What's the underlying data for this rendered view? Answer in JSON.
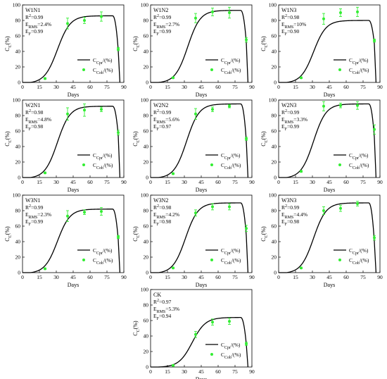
{
  "axes": {
    "xlabel": "Days",
    "ylabel": "C_C(%)",
    "xticks": [
      0,
      15,
      30,
      45,
      60,
      75,
      90
    ],
    "yticks": [
      0,
      20,
      40,
      60,
      80,
      100
    ],
    "xlim": [
      0,
      90
    ],
    "ylim": [
      0,
      100
    ]
  },
  "legend": {
    "pred_label": "C_Cpr/(%)",
    "obs_label": "C_Cob/(%)",
    "position": "bottom-right"
  },
  "colors": {
    "curve": "#000000",
    "observed": "#33ee33"
  },
  "chart_data": [
    {
      "type": "line",
      "panel_label": "W1N1",
      "stats": [
        "R2=0.99",
        "ERMS=2.4%",
        "EF=0.99"
      ],
      "curve": {
        "start": 7,
        "k": 0.175,
        "tmid": 31,
        "max": 86,
        "plateau_end": 80,
        "end": 86.5,
        "tail": 42
      },
      "observed": [
        {
          "x": 20,
          "y": 5,
          "err": 1
        },
        {
          "x": 40,
          "y": 76,
          "err": 7
        },
        {
          "x": 55,
          "y": 80,
          "err": 4
        },
        {
          "x": 70,
          "y": 85,
          "err": 6
        },
        {
          "x": 85,
          "y": 43,
          "err": 2
        }
      ],
      "xlim": [
        0,
        90
      ],
      "ylim": [
        0,
        100
      ]
    },
    {
      "type": "line",
      "panel_label": "W1N2",
      "stats": [
        "R2=0.99",
        "ERMS=2.7%",
        "EF=0.99"
      ],
      "curve": {
        "start": 7,
        "k": 0.18,
        "tmid": 33,
        "max": 93,
        "plateau_end": 80,
        "end": 86.5,
        "tail": 52
      },
      "observed": [
        {
          "x": 20,
          "y": 6,
          "err": 1
        },
        {
          "x": 40,
          "y": 83,
          "err": 6
        },
        {
          "x": 55,
          "y": 91,
          "err": 5
        },
        {
          "x": 70,
          "y": 90,
          "err": 7
        },
        {
          "x": 85,
          "y": 55,
          "err": 3
        }
      ],
      "xlim": [
        0,
        90
      ],
      "ylim": [
        0,
        100
      ]
    },
    {
      "type": "line",
      "panel_label": "W1N3",
      "stats": [
        "R2=0.98",
        "ERMS=10%",
        "EF=0.90"
      ],
      "curve": {
        "start": 7,
        "k": 0.18,
        "tmid": 31,
        "max": 80,
        "plateau_end": 80,
        "end": 86.5,
        "tail": 50
      },
      "observed": [
        {
          "x": 20,
          "y": 6,
          "err": 1
        },
        {
          "x": 40,
          "y": 82,
          "err": 7
        },
        {
          "x": 55,
          "y": 90,
          "err": 5
        },
        {
          "x": 70,
          "y": 91,
          "err": 6
        },
        {
          "x": 85,
          "y": 54,
          "err": 2
        }
      ],
      "xlim": [
        0,
        90
      ],
      "ylim": [
        0,
        100
      ]
    },
    {
      "type": "line",
      "panel_label": "W2N1",
      "stats": [
        "R2=0.98",
        "ERMS=4.8%",
        "EF=0.98"
      ],
      "curve": {
        "start": 7,
        "k": 0.18,
        "tmid": 31,
        "max": 92,
        "plateau_end": 80,
        "end": 86.5,
        "tail": 55
      },
      "observed": [
        {
          "x": 20,
          "y": 6,
          "err": 1
        },
        {
          "x": 40,
          "y": 82,
          "err": 8
        },
        {
          "x": 55,
          "y": 87,
          "err": 8
        },
        {
          "x": 70,
          "y": 88,
          "err": 3
        },
        {
          "x": 85,
          "y": 58,
          "err": 3
        }
      ],
      "xlim": [
        0,
        90
      ],
      "ylim": [
        0,
        100
      ]
    },
    {
      "type": "line",
      "panel_label": "W2N2",
      "stats": [
        "R2=0.99",
        "ERMS=5.6%",
        "EF=0.97"
      ],
      "curve": {
        "start": 7,
        "k": 0.18,
        "tmid": 32,
        "max": 95,
        "plateau_end": 80,
        "end": 86.5,
        "tail": 48
      },
      "observed": [
        {
          "x": 20,
          "y": 5,
          "err": 1
        },
        {
          "x": 40,
          "y": 82,
          "err": 7
        },
        {
          "x": 55,
          "y": 88,
          "err": 3
        },
        {
          "x": 70,
          "y": 92,
          "err": 2
        },
        {
          "x": 85,
          "y": 50,
          "err": 2
        }
      ],
      "xlim": [
        0,
        90
      ],
      "ylim": [
        0,
        100
      ]
    },
    {
      "type": "line",
      "panel_label": "W2N3",
      "stats": [
        "R2=0.99",
        "ERMS=3.3%",
        "EF=0.99"
      ],
      "curve": {
        "start": 7,
        "k": 0.18,
        "tmid": 31,
        "max": 95,
        "plateau_end": 80,
        "end": 86.5,
        "tail": 52
      },
      "observed": [
        {
          "x": 20,
          "y": 8,
          "err": 1
        },
        {
          "x": 40,
          "y": 92,
          "err": 6
        },
        {
          "x": 55,
          "y": 93,
          "err": 3
        },
        {
          "x": 70,
          "y": 93,
          "err": 5
        },
        {
          "x": 85,
          "y": 62,
          "err": 6
        }
      ],
      "xlim": [
        0,
        90
      ],
      "ylim": [
        0,
        100
      ]
    },
    {
      "type": "line",
      "panel_label": "W3N1",
      "stats": [
        "R2=0.99",
        "ERMS=2.3%",
        "EF=0.99"
      ],
      "curve": {
        "start": 7,
        "k": 0.18,
        "tmid": 31,
        "max": 82,
        "plateau_end": 80,
        "end": 86.5,
        "tail": 43
      },
      "observed": [
        {
          "x": 20,
          "y": 5,
          "err": 1
        },
        {
          "x": 40,
          "y": 73,
          "err": 7
        },
        {
          "x": 55,
          "y": 78,
          "err": 3
        },
        {
          "x": 70,
          "y": 79,
          "err": 5
        },
        {
          "x": 85,
          "y": 46,
          "err": 2
        }
      ],
      "xlim": [
        0,
        90
      ],
      "ylim": [
        0,
        100
      ]
    },
    {
      "type": "line",
      "panel_label": "W3N2",
      "stats": [
        "R2=0.98",
        "ERMS=4.2%",
        "EF=0.98"
      ],
      "curve": {
        "start": 7,
        "k": 0.18,
        "tmid": 31,
        "max": 90,
        "plateau_end": 80,
        "end": 86.5,
        "tail": 48
      },
      "observed": [
        {
          "x": 20,
          "y": 6,
          "err": 1
        },
        {
          "x": 40,
          "y": 77,
          "err": 4
        },
        {
          "x": 55,
          "y": 85,
          "err": 4
        },
        {
          "x": 70,
          "y": 85,
          "err": 4
        },
        {
          "x": 85,
          "y": 57,
          "err": 4
        }
      ],
      "xlim": [
        0,
        90
      ],
      "ylim": [
        0,
        100
      ]
    },
    {
      "type": "line",
      "panel_label": "W3N3",
      "stats": [
        "R2=0.99",
        "ERMS=4.4%",
        "EF=0.98"
      ],
      "curve": {
        "start": 7,
        "k": 0.18,
        "tmid": 31,
        "max": 90,
        "plateau_end": 80,
        "end": 86.5,
        "tail": 40
      },
      "observed": [
        {
          "x": 20,
          "y": 6,
          "err": 1
        },
        {
          "x": 40,
          "y": 80,
          "err": 5
        },
        {
          "x": 55,
          "y": 83,
          "err": 4
        },
        {
          "x": 70,
          "y": 89,
          "err": 3
        },
        {
          "x": 85,
          "y": 45,
          "err": 3
        }
      ],
      "xlim": [
        0,
        90
      ],
      "ylim": [
        0,
        100
      ]
    },
    {
      "type": "line",
      "panel_label": "CK",
      "stats": [
        "R2=0.97",
        "ERMS=5.3%",
        "EF=0.94"
      ],
      "curve": {
        "start": 7,
        "k": 0.17,
        "tmid": 37,
        "max": 64,
        "plateau_end": 80,
        "end": 86.5,
        "tail": 30
      },
      "observed": [
        {
          "x": 20,
          "y": 2,
          "err": 1
        },
        {
          "x": 40,
          "y": 42,
          "err": 4
        },
        {
          "x": 55,
          "y": 58,
          "err": 4
        },
        {
          "x": 70,
          "y": 59,
          "err": 4
        },
        {
          "x": 85,
          "y": 30,
          "err": 2
        }
      ],
      "xlim": [
        0,
        90
      ],
      "ylim": [
        0,
        100
      ]
    }
  ]
}
